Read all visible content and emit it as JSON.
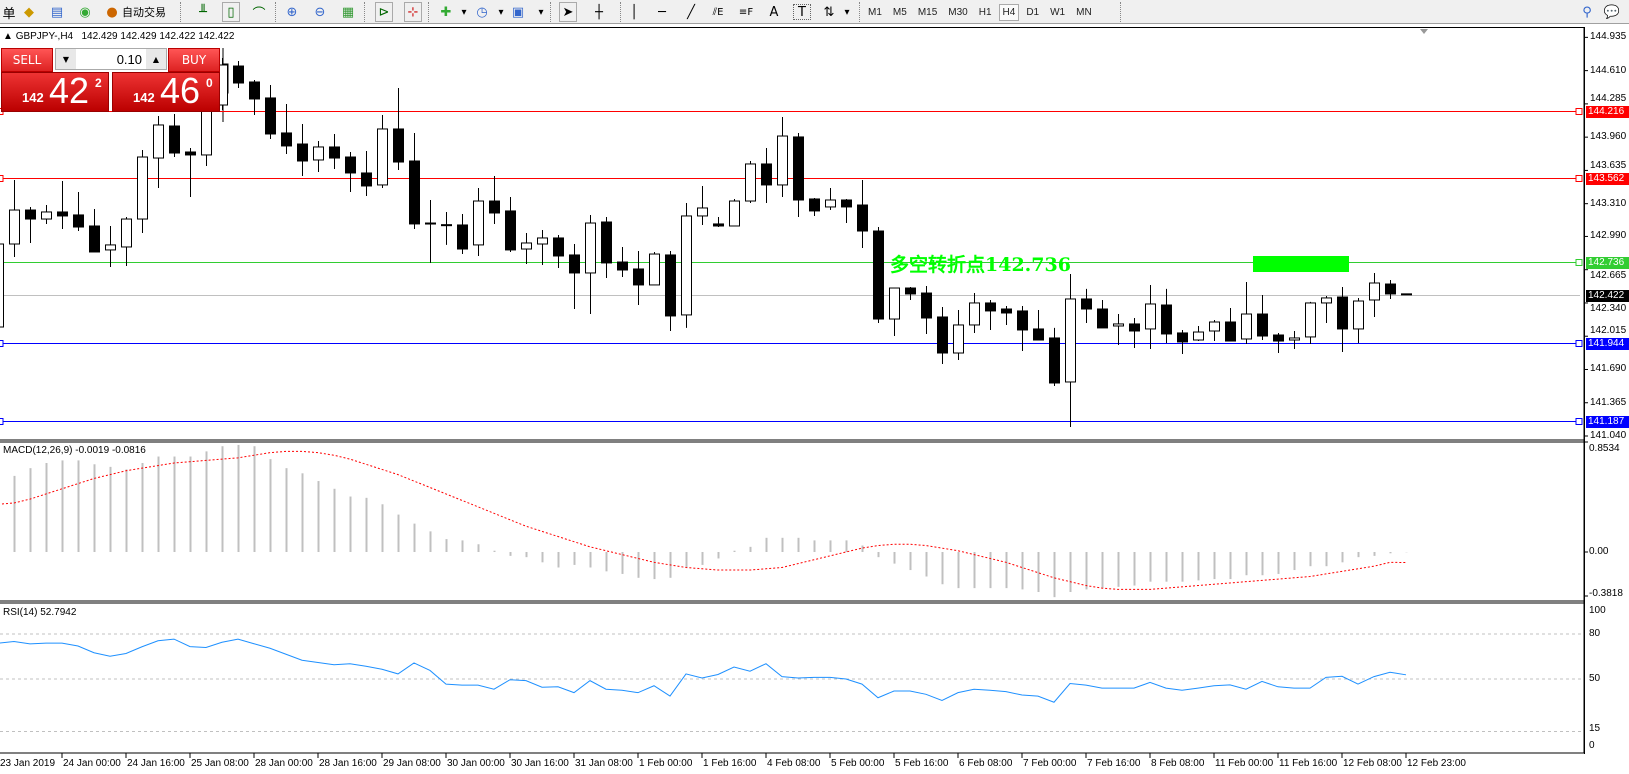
{
  "toolbar": {
    "menu_fragment": "单",
    "autotrade_label": "自动交易",
    "icons": [
      "gold-bars-icon",
      "navigator-icon",
      "signal-icon",
      "autotrade-icon",
      "bar-chart-icon",
      "candlestick-icon",
      "line-chart-icon",
      "zoom-in-icon",
      "zoom-out-icon",
      "tile-windows-icon",
      "chart-shift-icon",
      "auto-scroll-icon",
      "new-indicator-icon",
      "periods-icon",
      "templates-icon",
      "cursor-icon",
      "crosshair-icon",
      "vertical-line-icon",
      "horizontal-line-icon",
      "trendline-icon",
      "fibonacci-icon",
      "fibonacci-fan-icon",
      "text-icon",
      "text-label-icon",
      "arrows-icon",
      "search-icon",
      "chat-icon"
    ],
    "fib_e": "E",
    "fib_f": "F",
    "text_a": "A",
    "label_t": "T",
    "timeframes": [
      "M1",
      "M5",
      "M15",
      "M30",
      "H1",
      "H4",
      "D1",
      "W1",
      "MN"
    ],
    "active_timeframe": "H4"
  },
  "chart": {
    "symbol": "GBPJPY-,H4",
    "ohlc_text": "142.429 142.429 142.422 142.422",
    "price_ticks": [
      "144.935",
      "144.610",
      "144.285",
      "143.960",
      "143.635",
      "143.310",
      "142.990",
      "142.665",
      "142.340",
      "142.015",
      "141.690",
      "141.365",
      "141.040"
    ],
    "levels": [
      {
        "price": "144.216",
        "color": "#ff0000"
      },
      {
        "price": "143.562",
        "color": "#ff0000"
      },
      {
        "price": "142.736",
        "color": "#32cd32"
      },
      {
        "price": "142.422",
        "color": "#000000",
        "line_color": "#c0c0c0"
      },
      {
        "price": "141.944",
        "color": "#0000ff"
      },
      {
        "price": "141.187",
        "color": "#0000ff"
      }
    ],
    "annotation": "多空转折点142.736",
    "annotation_color": "#00ff00",
    "time_labels": [
      "23 Jan 2019",
      "24 Jan 00:00",
      "24 Jan 16:00",
      "25 Jan 08:00",
      "28 Jan 00:00",
      "28 Jan 16:00",
      "29 Jan 08:00",
      "30 Jan 00:00",
      "30 Jan 16:00",
      "31 Jan 08:00",
      "1 Feb 00:00",
      "1 Feb 16:00",
      "4 Feb 08:00",
      "5 Feb 00:00",
      "5 Feb 16:00",
      "6 Feb 08:00",
      "7 Feb 00:00",
      "7 Feb 16:00",
      "8 Feb 08:00",
      "11 Feb 00:00",
      "11 Feb 16:00",
      "12 Feb 08:00",
      "12 Feb 23:00"
    ]
  },
  "trade_panel": {
    "sell_label": "SELL",
    "buy_label": "BUY",
    "volume": "0.10",
    "sell": {
      "prefix": "142",
      "big": "42",
      "sup": "2"
    },
    "buy": {
      "prefix": "142",
      "big": "46",
      "sup": "0"
    }
  },
  "macd": {
    "label": "MACD(12,26,9) -0.0019 -0.0816",
    "ticks": [
      "0.8534",
      "0.00",
      "-0.3818"
    ]
  },
  "rsi": {
    "label": "RSI(14) 52.7942",
    "ticks": [
      "100",
      "80",
      "50",
      "15",
      "0"
    ]
  },
  "chart_data": [
    {
      "type": "candlestick",
      "symbol": "GBPJPY-",
      "timeframe": "H4",
      "ylim": [
        141.04,
        144.935
      ],
      "ohlc": [
        [
          142.105,
          142.955,
          142.076,
          142.916
        ],
        [
          142.916,
          143.541,
          142.789,
          143.248
        ],
        [
          143.248,
          143.278,
          142.926,
          143.16
        ],
        [
          143.16,
          143.297,
          143.112,
          143.229
        ],
        [
          143.229,
          143.532,
          143.063,
          143.19
        ],
        [
          143.2,
          143.424,
          143.043,
          143.082
        ],
        [
          143.092,
          143.258,
          142.838,
          142.838
        ],
        [
          142.858,
          143.092,
          142.691,
          142.907
        ],
        [
          142.887,
          143.18,
          142.701,
          143.16
        ],
        [
          143.16,
          143.835,
          143.024,
          143.766
        ],
        [
          143.756,
          144.167,
          143.463,
          144.079
        ],
        [
          144.069,
          144.186,
          143.766,
          143.805
        ],
        [
          143.815,
          143.854,
          143.375,
          143.786
        ],
        [
          143.786,
          144.372,
          143.678,
          144.274
        ],
        [
          144.274,
          144.733,
          144.225,
          144.665
        ],
        [
          144.655,
          144.704,
          144.44,
          144.489
        ],
        [
          144.499,
          144.518,
          144.176,
          144.333
        ],
        [
          144.343,
          144.47,
          143.942,
          143.991
        ],
        [
          144.001,
          144.284,
          143.795,
          143.874
        ],
        [
          143.893,
          144.089,
          143.58,
          143.727
        ],
        [
          143.737,
          143.922,
          143.62,
          143.864
        ],
        [
          143.864,
          143.991,
          143.649,
          143.756
        ],
        [
          143.766,
          143.815,
          143.424,
          143.61
        ],
        [
          143.61,
          143.825,
          143.385,
          143.483
        ],
        [
          143.493,
          144.176,
          143.463,
          144.04
        ],
        [
          144.04,
          144.44,
          143.639,
          143.717
        ],
        [
          143.727,
          144.001,
          143.063,
          143.112
        ],
        [
          143.121,
          143.346,
          142.731,
          143.115
        ],
        [
          143.105,
          143.229,
          142.907,
          143.1
        ],
        [
          143.102,
          143.209,
          142.818,
          142.867
        ],
        [
          142.907,
          143.463,
          142.799,
          143.336
        ],
        [
          143.336,
          143.58,
          143.112,
          143.219
        ],
        [
          143.239,
          143.375,
          142.838,
          142.858
        ],
        [
          142.867,
          143.024,
          142.721,
          142.926
        ],
        [
          142.916,
          143.053,
          142.711,
          142.975
        ],
        [
          142.975,
          143.004,
          142.682,
          142.799
        ],
        [
          142.809,
          142.916,
          142.281,
          142.633
        ],
        [
          142.633,
          143.199,
          142.232,
          143.121
        ],
        [
          143.131,
          143.18,
          142.584,
          142.731
        ],
        [
          142.74,
          142.887,
          142.594,
          142.662
        ],
        [
          142.672,
          142.848,
          142.32,
          142.516
        ],
        [
          142.516,
          142.838,
          142.516,
          142.818
        ],
        [
          142.809,
          142.848,
          142.066,
          142.213
        ],
        [
          142.223,
          143.317,
          142.096,
          143.19
        ],
        [
          143.19,
          143.483,
          143.102,
          143.268
        ],
        [
          143.112,
          143.18,
          143.082,
          143.092
        ],
        [
          143.092,
          143.356,
          143.092,
          143.336
        ],
        [
          143.336,
          143.727,
          143.317,
          143.698
        ],
        [
          143.698,
          143.854,
          143.317,
          143.493
        ],
        [
          143.493,
          144.157,
          143.375,
          143.971
        ],
        [
          143.962,
          144.001,
          143.18,
          143.346
        ],
        [
          143.356,
          143.366,
          143.19,
          143.239
        ],
        [
          143.278,
          143.463,
          143.248,
          143.346
        ],
        [
          143.346,
          143.356,
          143.121,
          143.278
        ],
        [
          143.297,
          143.541,
          142.877,
          143.043
        ],
        [
          143.043,
          143.082,
          142.144,
          142.183
        ],
        [
          142.183,
          142.486,
          142.017,
          142.486
        ],
        [
          142.486,
          142.496,
          142.369,
          142.428
        ],
        [
          142.437,
          142.506,
          142.037,
          142.193
        ],
        [
          142.203,
          142.301,
          141.744,
          141.851
        ],
        [
          141.851,
          142.271,
          141.783,
          142.125
        ],
        [
          142.125,
          142.437,
          142.047,
          142.34
        ],
        [
          142.34,
          142.369,
          142.076,
          142.262
        ],
        [
          142.281,
          142.31,
          142.125,
          142.242
        ],
        [
          142.262,
          142.31,
          141.871,
          142.076
        ],
        [
          142.086,
          142.271,
          141.978,
          141.978
        ],
        [
          141.998,
          142.096,
          141.529,
          141.558
        ],
        [
          141.568,
          142.623,
          141.128,
          142.379
        ],
        [
          142.379,
          142.477,
          142.144,
          142.281
        ],
        [
          142.281,
          142.369,
          142.096,
          142.096
        ],
        [
          142.115,
          142.232,
          141.929,
          142.135
        ],
        [
          142.135,
          142.193,
          141.9,
          142.066
        ],
        [
          142.086,
          142.516,
          141.89,
          142.33
        ],
        [
          142.32,
          142.477,
          141.949,
          142.037
        ],
        [
          142.047,
          142.076,
          141.841,
          141.959
        ],
        [
          141.978,
          142.115,
          141.968,
          142.056
        ],
        [
          142.066,
          142.174,
          141.968,
          142.154
        ],
        [
          142.154,
          142.291,
          141.968,
          141.968
        ],
        [
          141.988,
          142.545,
          141.939,
          142.232
        ],
        [
          142.232,
          142.418,
          141.978,
          142.017
        ],
        [
          142.027,
          142.047,
          141.851,
          141.968
        ],
        [
          141.978,
          142.066,
          141.89,
          141.998
        ],
        [
          142.008,
          142.35,
          141.939,
          142.34
        ],
        [
          142.34,
          142.408,
          142.144,
          142.389
        ],
        [
          142.398,
          142.496,
          141.861,
          142.086
        ],
        [
          142.086,
          142.389,
          141.949,
          142.359
        ],
        [
          142.369,
          142.633,
          142.203,
          142.535
        ],
        [
          142.525,
          142.564,
          142.379,
          142.428
        ],
        [
          142.429,
          142.429,
          142.422,
          142.422
        ]
      ]
    },
    {
      "type": "bar",
      "title": "MACD(12,26,9)",
      "ylim": [
        -0.3818,
        0.8534
      ],
      "histogram_color": "#c0c0c0",
      "signal_color": "#ff0000",
      "macd": [
        0.55,
        0.59,
        0.65,
        0.69,
        0.71,
        0.71,
        0.68,
        0.66,
        0.64,
        0.69,
        0.74,
        0.74,
        0.74,
        0.78,
        0.82,
        0.83,
        0.82,
        0.72,
        0.65,
        0.61,
        0.55,
        0.49,
        0.43,
        0.42,
        0.37,
        0.29,
        0.22,
        0.16,
        0.1,
        0.09,
        0.06,
        0.01,
        -0.03,
        -0.04,
        -0.08,
        -0.12,
        -0.1,
        -0.12,
        -0.15,
        -0.17,
        -0.2,
        -0.21,
        -0.2,
        -0.12,
        -0.1,
        -0.05,
        0.01,
        0.04,
        0.11,
        0.11,
        0.11,
        0.09,
        0.09,
        0.09,
        0.05,
        -0.04,
        -0.09,
        -0.14,
        -0.19,
        -0.25,
        -0.28,
        -0.28,
        -0.28,
        -0.28,
        -0.29,
        -0.31,
        -0.35,
        -0.31,
        -0.29,
        -0.28,
        -0.27,
        -0.26,
        -0.23,
        -0.23,
        -0.23,
        -0.22,
        -0.21,
        -0.21,
        -0.18,
        -0.18,
        -0.17,
        -0.14,
        -0.11,
        -0.11,
        -0.08,
        -0.04,
        -0.03,
        -0.01,
        -0.0019
      ],
      "signal": [
        0.37,
        0.38,
        0.41,
        0.45,
        0.49,
        0.53,
        0.57,
        0.6,
        0.63,
        0.65,
        0.67,
        0.69,
        0.7,
        0.71,
        0.72,
        0.73,
        0.75,
        0.77,
        0.78,
        0.78,
        0.77,
        0.75,
        0.72,
        0.68,
        0.64,
        0.6,
        0.55,
        0.5,
        0.45,
        0.4,
        0.35,
        0.3,
        0.25,
        0.2,
        0.16,
        0.12,
        0.08,
        0.04,
        0.01,
        -0.02,
        -0.05,
        -0.08,
        -0.1,
        -0.12,
        -0.13,
        -0.14,
        -0.14,
        -0.14,
        -0.13,
        -0.12,
        -0.09,
        -0.06,
        -0.03,
        0.0,
        0.03,
        0.05,
        0.06,
        0.06,
        0.05,
        0.03,
        0.01,
        -0.02,
        -0.05,
        -0.08,
        -0.12,
        -0.16,
        -0.2,
        -0.23,
        -0.26,
        -0.28,
        -0.29,
        -0.29,
        -0.29,
        -0.28,
        -0.27,
        -0.26,
        -0.25,
        -0.24,
        -0.23,
        -0.22,
        -0.21,
        -0.2,
        -0.19,
        -0.17,
        -0.15,
        -0.13,
        -0.11,
        -0.08,
        -0.0816
      ]
    },
    {
      "type": "line",
      "title": "RSI(14)",
      "ylim": [
        0,
        100
      ],
      "levels": [
        80,
        50,
        15
      ],
      "color": "#1e90ff",
      "values": [
        73.9,
        75.0,
        73.4,
        73.9,
        73.9,
        72.0,
        67.5,
        65.2,
        67.0,
        71.5,
        75.5,
        76.6,
        71.6,
        71.0,
        74.5,
        76.6,
        73.5,
        70.5,
        66.5,
        62.5,
        61.0,
        59.5,
        60.2,
        58.5,
        56.5,
        53.4,
        60.7,
        55.7,
        46.6,
        45.9,
        45.9,
        43.2,
        49.5,
        48.9,
        44.5,
        44.8,
        40.9,
        48.9,
        43.2,
        42.5,
        40.9,
        45.5,
        38.6,
        53.4,
        50.7,
        53.0,
        58.0,
        55.2,
        60.2,
        51.6,
        50.7,
        51.1,
        51.1,
        50.0,
        46.6,
        37.5,
        42.0,
        42.0,
        39.8,
        35.7,
        40.9,
        43.2,
        42.5,
        41.6,
        39.3,
        38.6,
        34.5,
        47.0,
        45.9,
        43.9,
        43.9,
        43.9,
        47.7,
        43.9,
        42.5,
        43.9,
        45.5,
        46.1,
        43.2,
        48.4,
        44.8,
        43.9,
        43.9,
        51.1,
        51.8,
        46.6,
        51.6,
        54.5,
        52.7942
      ]
    }
  ]
}
